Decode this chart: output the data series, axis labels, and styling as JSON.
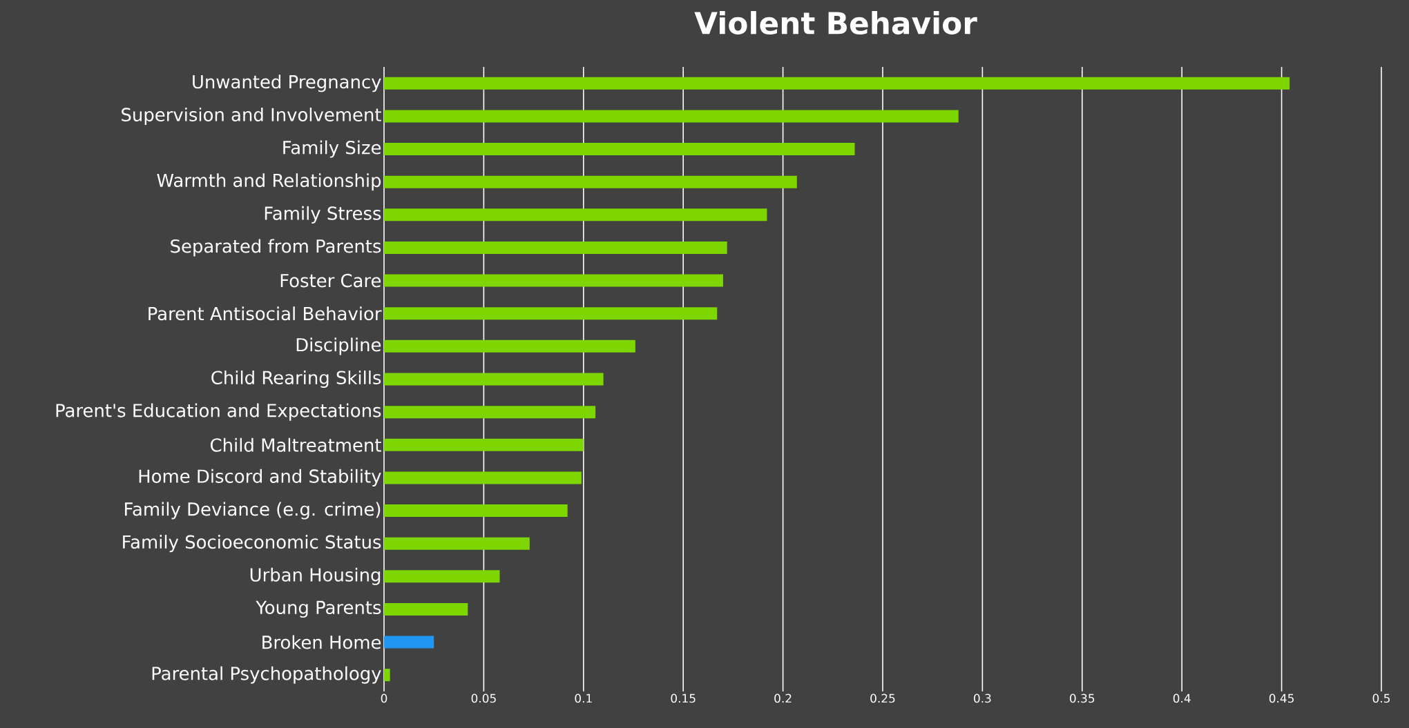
{
  "chart_data": {
    "type": "bar",
    "orientation": "horizontal",
    "title": "Violent Behavior",
    "categories": [
      "Unwanted Pregnancy",
      "Supervision and Involvement",
      "Family Size",
      "Warmth and Relationship",
      "Family Stress",
      "Separated from Parents",
      "Foster Care",
      "Parent Antisocial Behavior",
      "Discipline",
      "Child Rearing Skills",
      "Parent's Education and Expectations",
      "Child Maltreatment",
      "Home Discord and Stability",
      "Family Deviance (e.g. crime)",
      "Family Socioeconomic Status",
      "Urban Housing",
      "Young Parents",
      "Broken Home",
      "Parental Psychopathology"
    ],
    "values": [
      0.454,
      0.288,
      0.236,
      0.207,
      0.192,
      0.172,
      0.17,
      0.167,
      0.126,
      0.11,
      0.106,
      0.1,
      0.099,
      0.092,
      0.073,
      0.058,
      0.042,
      0.025,
      0.003
    ],
    "colors": [
      "#7ed600",
      "#7ed600",
      "#7ed600",
      "#7ed600",
      "#7ed600",
      "#7ed600",
      "#7ed600",
      "#7ed600",
      "#7ed600",
      "#7ed600",
      "#7ed600",
      "#7ed600",
      "#7ed600",
      "#7ed600",
      "#7ed600",
      "#7ed600",
      "#7ed600",
      "#2196f3",
      "#7ed600"
    ],
    "xlim": [
      0,
      0.5
    ],
    "xticks": [
      0,
      0.05,
      0.1,
      0.15,
      0.2,
      0.25,
      0.3,
      0.35,
      0.4,
      0.45,
      0.5
    ],
    "grid": "x"
  }
}
